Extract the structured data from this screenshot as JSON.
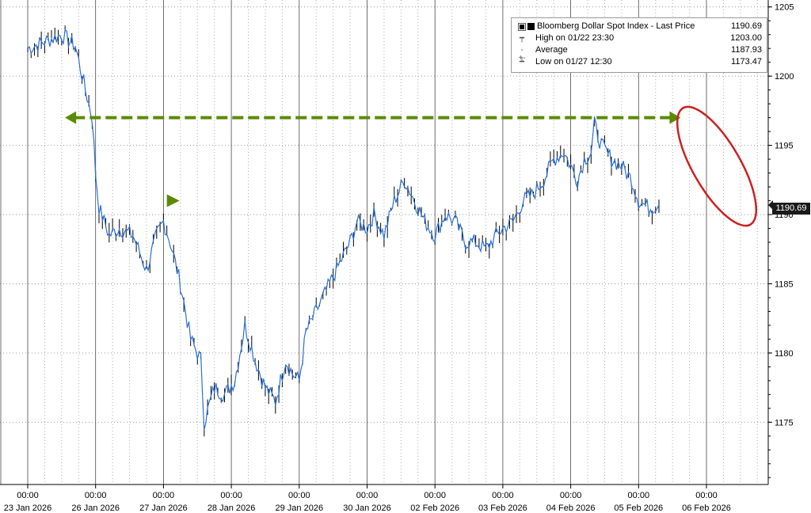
{
  "chart_data": {
    "type": "candlestick-line",
    "title": "Bloomberg Dollar Spot Index - Last Price",
    "ylim": [
      1170.5,
      1205.5
    ],
    "y_ticks": [
      1175,
      1180,
      1185,
      1190,
      1195,
      1200,
      1205
    ],
    "x_tick_time": "00:00",
    "x_tick_dates": [
      "23 Jan 2026",
      "26 Jan 2026",
      "27 Jan 2026",
      "28 Jan 2026",
      "29 Jan 2026",
      "30 Jan 2026",
      "02 Feb 2026",
      "03 Feb 2026",
      "04 Feb 2026",
      "05 Feb 2026",
      "06 Feb 2026"
    ],
    "legend": [
      {
        "label": "Bloomberg Dollar Spot Index - Last Price",
        "value": "1190.69"
      },
      {
        "label": "High on 01/22 23:30",
        "value": "1203.00"
      },
      {
        "label": "Average",
        "value": "1187.93"
      },
      {
        "label": "Low on 01/27 12:30",
        "value": "1173.47"
      }
    ],
    "last_price_label": "1190.69",
    "series": [
      {
        "name": "Bloomberg Dollar Spot Index - Last Price",
        "points": [
          [
            0.0,
            1202.0
          ],
          [
            0.25,
            1202.5
          ],
          [
            0.5,
            1203.0
          ],
          [
            0.7,
            1202.2
          ],
          [
            0.85,
            1199.0
          ],
          [
            0.95,
            1197.0
          ],
          [
            1.0,
            1193.0
          ],
          [
            1.05,
            1190.5
          ],
          [
            1.2,
            1188.5
          ],
          [
            1.35,
            1189.0
          ],
          [
            1.55,
            1188.5
          ],
          [
            1.75,
            1186.0
          ],
          [
            1.9,
            1188.5
          ],
          [
            2.0,
            1189.5
          ],
          [
            2.1,
            1188.0
          ],
          [
            2.25,
            1185.0
          ],
          [
            2.4,
            1181.0
          ],
          [
            2.55,
            1179.5
          ],
          [
            2.6,
            1175.0
          ],
          [
            2.75,
            1177.5
          ],
          [
            2.9,
            1177.0
          ],
          [
            3.05,
            1178.0
          ],
          [
            3.2,
            1182.0
          ],
          [
            3.35,
            1179.5
          ],
          [
            3.5,
            1177.5
          ],
          [
            3.65,
            1176.5
          ],
          [
            3.8,
            1179.5
          ],
          [
            3.9,
            1178.5
          ],
          [
            4.0,
            1178.0
          ],
          [
            4.1,
            1181.5
          ],
          [
            4.25,
            1183.0
          ],
          [
            4.4,
            1184.5
          ],
          [
            4.6,
            1186.5
          ],
          [
            4.75,
            1188.0
          ],
          [
            4.85,
            1189.5
          ],
          [
            5.0,
            1189.0
          ],
          [
            5.1,
            1190.0
          ],
          [
            5.25,
            1188.5
          ],
          [
            5.4,
            1191.0
          ],
          [
            5.55,
            1192.5
          ],
          [
            5.7,
            1191.0
          ],
          [
            5.85,
            1189.5
          ],
          [
            6.0,
            1188.5
          ],
          [
            6.15,
            1190.0
          ],
          [
            6.3,
            1189.5
          ],
          [
            6.45,
            1188.0
          ],
          [
            6.6,
            1188.0
          ],
          [
            6.75,
            1187.5
          ],
          [
            6.9,
            1188.5
          ],
          [
            7.0,
            1189.0
          ],
          [
            7.15,
            1189.5
          ],
          [
            7.3,
            1191.0
          ],
          [
            7.45,
            1191.5
          ],
          [
            7.6,
            1192.5
          ],
          [
            7.75,
            1194.0
          ],
          [
            7.9,
            1194.5
          ],
          [
            8.0,
            1193.5
          ],
          [
            8.1,
            1192.5
          ],
          [
            8.2,
            1194.0
          ],
          [
            8.3,
            1194.5
          ],
          [
            8.35,
            1196.5
          ],
          [
            8.45,
            1195.0
          ],
          [
            8.6,
            1194.0
          ],
          [
            8.75,
            1193.5
          ],
          [
            8.9,
            1192.5
          ],
          [
            9.0,
            1191.0
          ],
          [
            9.15,
            1190.5
          ],
          [
            9.3,
            1190.7
          ]
        ]
      }
    ],
    "annotations": {
      "arrow_label": "",
      "circled_region": "06 Feb 2026 decline"
    }
  }
}
